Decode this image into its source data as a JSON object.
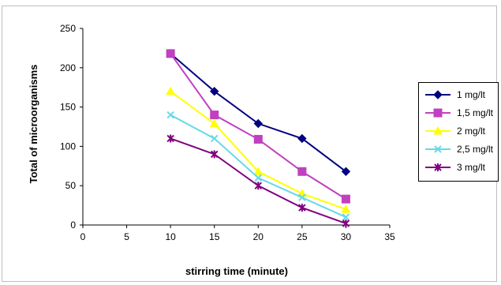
{
  "chart_data": {
    "type": "line",
    "title": "",
    "xlabel": "stirring time (minute)",
    "ylabel": "Total of microorganisms",
    "xlim": [
      0,
      35
    ],
    "ylim": [
      0,
      250
    ],
    "x_ticks": [
      0,
      5,
      10,
      15,
      20,
      25,
      30,
      35
    ],
    "y_ticks": [
      0,
      50,
      100,
      150,
      200,
      250
    ],
    "grid": false,
    "legend_position": "right",
    "x": [
      10,
      15,
      20,
      25,
      30
    ],
    "series": [
      {
        "name": "1 mg/lt",
        "values": [
          218,
          170,
          129,
          110,
          68
        ],
        "color": "#000080",
        "marker": "diamond"
      },
      {
        "name": "1,5 mg/lt",
        "values": [
          218,
          140,
          109,
          68,
          33
        ],
        "color": "#c040c0",
        "marker": "square"
      },
      {
        "name": "2 mg/lt",
        "values": [
          170,
          129,
          68,
          40,
          20
        ],
        "color": "#ffff00",
        "marker": "triangle"
      },
      {
        "name": "2,5 mg/lt",
        "values": [
          140,
          110,
          60,
          35,
          10
        ],
        "color": "#66d9e8",
        "marker": "x"
      },
      {
        "name": "3 mg/lt",
        "values": [
          110,
          90,
          50,
          22,
          2
        ],
        "color": "#800080",
        "marker": "star"
      }
    ]
  }
}
